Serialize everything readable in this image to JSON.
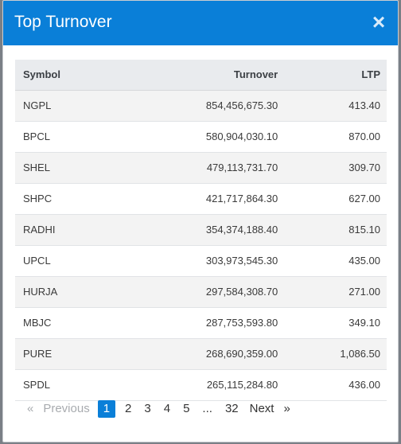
{
  "modal": {
    "title": "Top Turnover",
    "close_glyph": "×"
  },
  "table": {
    "headers": {
      "symbol": "Symbol",
      "turnover": "Turnover",
      "ltp": "LTP"
    },
    "rows": [
      {
        "symbol": "NGPL",
        "turnover": "854,456,675.30",
        "ltp": "413.40"
      },
      {
        "symbol": "BPCL",
        "turnover": "580,904,030.10",
        "ltp": "870.00"
      },
      {
        "symbol": "SHEL",
        "turnover": "479,113,731.70",
        "ltp": "309.70"
      },
      {
        "symbol": "SHPC",
        "turnover": "421,717,864.30",
        "ltp": "627.00"
      },
      {
        "symbol": "RADHI",
        "turnover": "354,374,188.40",
        "ltp": "815.10"
      },
      {
        "symbol": "UPCL",
        "turnover": "303,973,545.30",
        "ltp": "435.00"
      },
      {
        "symbol": "HURJA",
        "turnover": "297,584,308.70",
        "ltp": "271.00"
      },
      {
        "symbol": "MBJC",
        "turnover": "287,753,593.80",
        "ltp": "349.10"
      },
      {
        "symbol": "PURE",
        "turnover": "268,690,359.00",
        "ltp": "1,086.50"
      },
      {
        "symbol": "SPDL",
        "turnover": "265,115,284.80",
        "ltp": "436.00"
      }
    ]
  },
  "pagination": {
    "prev_arrow": "«",
    "prev_label": "Previous",
    "pages": [
      "1",
      "2",
      "3",
      "4",
      "5"
    ],
    "ellipsis": "...",
    "last_page": "32",
    "next_label": "Next",
    "next_arrow": "»",
    "active_page": "1"
  },
  "colors": {
    "header_bg": "#0a7fd8",
    "active_page_bg": "#0a7fd8",
    "table_header_bg": "#e9ebee",
    "stripe": "#f3f3f3"
  }
}
